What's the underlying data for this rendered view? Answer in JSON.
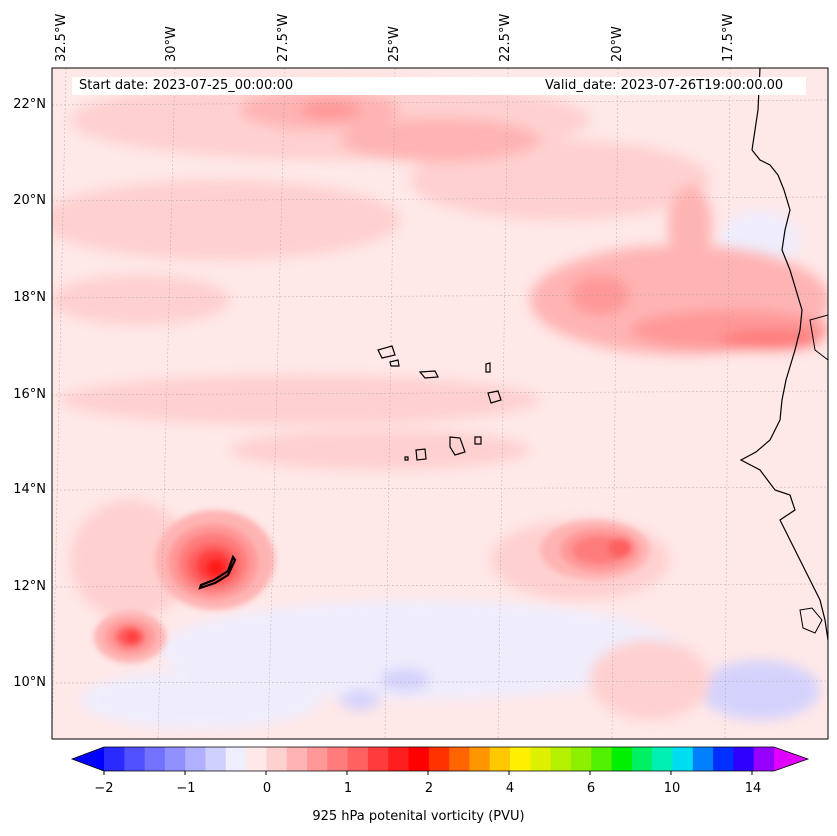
{
  "map": {
    "start_date": "Start date: 2023-07-25_00:00:00",
    "valid_date": "Valid_date: 2023-07-26T19:00:00.00",
    "lon_labels": [
      "32.5°W",
      "30°W",
      "27.5°W",
      "25°W",
      "22.5°W",
      "20°W",
      "17.5°W"
    ],
    "lat_labels": [
      "22°N",
      "20°N",
      "18°N",
      "16°N",
      "14°N",
      "12°N",
      "10°N"
    ],
    "extent": {
      "lon_min": -32.5,
      "lon_max": -15.5,
      "lat_min": 8.9,
      "lat_max": 22.8
    }
  },
  "colorbar": {
    "label": "925 hPa potenital vorticity (PVU)",
    "tick_labels": [
      "−2",
      "−1",
      "0",
      "1",
      "2",
      "4",
      "6",
      "10",
      "14"
    ],
    "colors": [
      "#0000ff",
      "#2a2aff",
      "#5050ff",
      "#7272ff",
      "#9090ff",
      "#b0b0ff",
      "#d0d0ff",
      "#eeeeff",
      "#ffe8e8",
      "#ffd0d0",
      "#ffb4b4",
      "#ff9898",
      "#ff7c7c",
      "#ff6060",
      "#ff3c3c",
      "#ff1e1e",
      "#ff0000",
      "#ff3200",
      "#ff6400",
      "#ff9600",
      "#ffc800",
      "#fff000",
      "#dcf000",
      "#b4f000",
      "#8cf000",
      "#50f000",
      "#00f000",
      "#00f064",
      "#00f0b4",
      "#00dcf0",
      "#0080ff",
      "#0030ff",
      "#3000ff",
      "#9600ff",
      "#e000ff"
    ]
  }
}
